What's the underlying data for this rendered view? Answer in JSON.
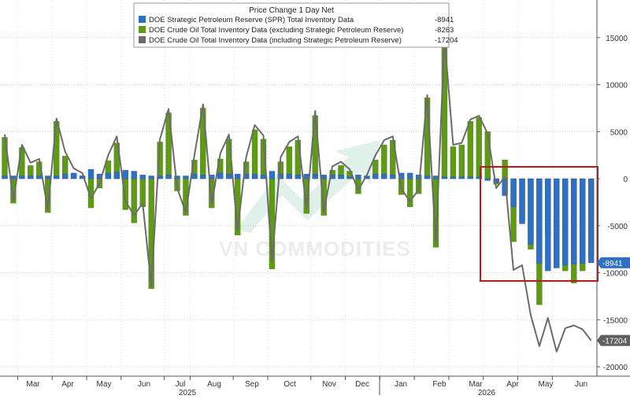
{
  "legend": {
    "title": "Price Change 1 Day Net",
    "entries": [
      {
        "label": "DOE Strategic Petroleum Reserve (SPR) Total Inventory Data",
        "value": "-8941",
        "color": "#2f6fc4"
      },
      {
        "label": "DOE Crude Oil Total Inventory Data (excluding Strategic Petroleum Reserve)",
        "value": "-8263",
        "color": "#5e9a16"
      },
      {
        "label": "DOE Crude Oil Total Inventory Data (including Strategic Petroleum Reserve)",
        "value": "-17204",
        "color": "#6b6b6b"
      }
    ]
  },
  "watermark": "VN COMMODITIES",
  "chart_data": {
    "type": "bar",
    "ylim": [
      -21000,
      19000
    ],
    "y_ticks": [
      15000,
      10000,
      5000,
      0,
      -5000,
      -10000,
      -15000,
      -20000
    ],
    "y_tick_labels": [
      "15000",
      "10000",
      "5000",
      "0",
      "-5000",
      "-10000",
      "-15000",
      "-20000"
    ],
    "x_month_labels": [
      "Mar",
      "Apr",
      "May",
      "Jun",
      "Jul",
      "Aug",
      "Sep",
      "Oct",
      "Nov",
      "Dec",
      "Jan",
      "Feb",
      "Mar",
      "Apr",
      "May",
      "Jun"
    ],
    "x_year_labels": [
      "2025",
      "2026"
    ],
    "last_value_labels": {
      "spr": "-8941",
      "total": "-17204"
    },
    "highlight_box_color": "#b71c1c",
    "grid": true,
    "series": [
      {
        "name": "DOE Strategic Petroleum Reserve (SPR) Total Inventory Data",
        "color": "#2f6fc4",
        "values": [
          300,
          300,
          300,
          300,
          300,
          300,
          300,
          500,
          600,
          300,
          1000,
          500,
          600,
          700,
          900,
          800,
          400,
          300,
          300,
          400,
          300,
          300,
          500,
          400,
          400,
          600,
          500,
          500,
          500,
          500,
          400,
          800,
          500,
          500,
          400,
          500,
          500,
          400,
          400,
          400,
          200,
          400,
          300,
          500,
          500,
          400,
          600,
          600,
          400,
          300,
          300,
          200,
          200,
          200,
          200,
          200,
          -200,
          -400,
          -1800,
          -3000,
          -4800,
          -7000,
          -9000,
          -9800,
          -9500,
          -9200,
          -9100,
          -9000,
          -8941
        ]
      },
      {
        "name": "DOE Crude Oil Total Inventory Data (excluding Strategic Petroleum Reserve)",
        "color": "#5e9a16",
        "values": [
          4400,
          -2600,
          3300,
          1400,
          1800,
          -3600,
          6100,
          2400,
          500,
          300,
          -3100,
          -1000,
          1900,
          3800,
          -3300,
          -4700,
          -3000,
          -11700,
          3900,
          7000,
          -1300,
          -3900,
          2000,
          7500,
          -3100,
          2100,
          4200,
          -6000,
          1800,
          5200,
          4200,
          -9600,
          1800,
          3400,
          4100,
          -3700,
          6700,
          -3900,
          900,
          1400,
          800,
          -1600,
          100,
          2000,
          3600,
          4100,
          -1700,
          -3000,
          -1600,
          8600,
          -7300,
          14800,
          3400,
          3600,
          6100,
          6500,
          5000,
          -600,
          2000,
          -6700,
          -4400,
          -7500,
          -13400,
          -6100,
          -9400,
          -9800,
          -11100,
          -9800,
          -8263
        ]
      },
      {
        "name": "DOE Crude Oil Total Inventory Data (including Strategic Petroleum Reserve)",
        "color": "#6b6b6b",
        "values": [
          4700,
          -2300,
          3600,
          1700,
          2100,
          -3300,
          6400,
          2900,
          1100,
          600,
          -2100,
          -500,
          2500,
          4500,
          -2400,
          -3900,
          -2600,
          -11400,
          4200,
          7400,
          -1000,
          -3600,
          2500,
          7900,
          -2700,
          2700,
          4700,
          -5500,
          2300,
          5700,
          4600,
          -8800,
          2300,
          3900,
          4500,
          -3200,
          7200,
          -3500,
          1300,
          1800,
          1000,
          -1200,
          400,
          2500,
          4100,
          4500,
          -1100,
          -2400,
          -1200,
          8900,
          -7000,
          15000,
          3600,
          3800,
          6300,
          6700,
          4800,
          -1000,
          200,
          -9700,
          -9200,
          -14500,
          -17800,
          -14800,
          -18400,
          -15900,
          -15600,
          -16000,
          -17204
        ]
      }
    ]
  }
}
